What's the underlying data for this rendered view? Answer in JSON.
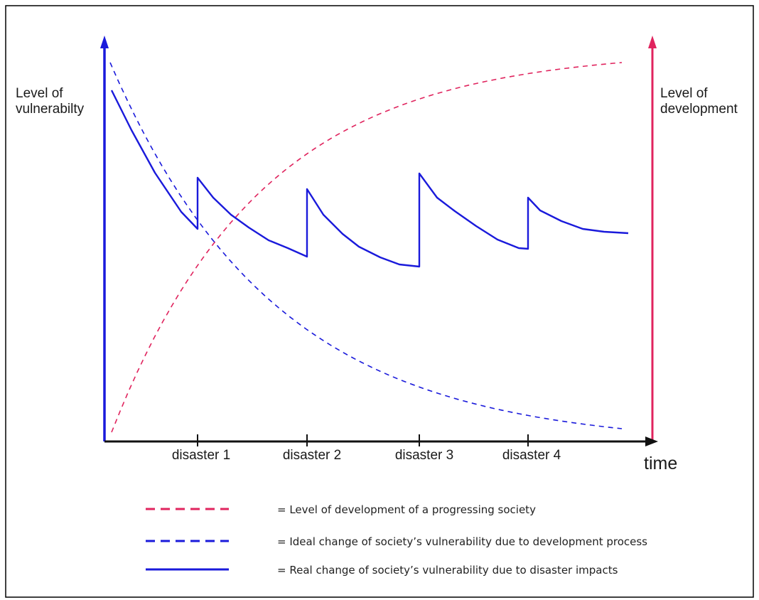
{
  "colors": {
    "vulnerability": "#1a1adb",
    "development": "#e0245e",
    "axis": "#111111",
    "frame": "#000000"
  },
  "axes": {
    "left_label_lines": [
      "Level of",
      "vulnerabilty"
    ],
    "right_label_lines": [
      "Level of",
      "development"
    ],
    "x_label": "time"
  },
  "disasters": [
    {
      "label": "disaster 1"
    },
    {
      "label": "disaster 2"
    },
    {
      "label": "disaster 3"
    },
    {
      "label": "disaster 4"
    }
  ],
  "legend": [
    {
      "style": "dashed",
      "color_key": "development",
      "text": "= Level of development of a progressing society"
    },
    {
      "style": "dashed",
      "color_key": "vulnerability",
      "text": "= Ideal change of society’s vulnerability due to development process"
    },
    {
      "style": "solid",
      "color_key": "vulnerability",
      "text": "= Real change of society’s vulnerability due to disaster impacts"
    }
  ]
}
